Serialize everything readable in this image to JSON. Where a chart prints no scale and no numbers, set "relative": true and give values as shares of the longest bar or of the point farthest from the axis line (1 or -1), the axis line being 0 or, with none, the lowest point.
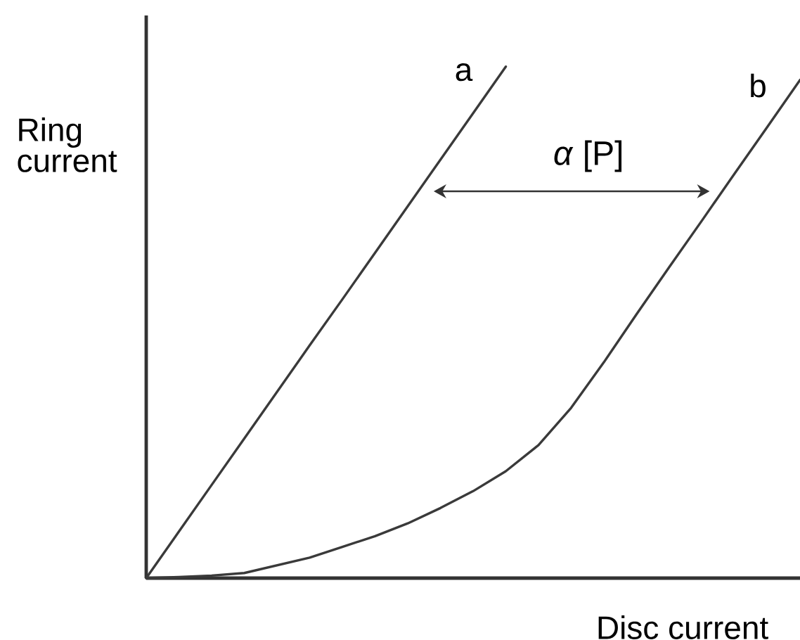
{
  "chart_data": {
    "type": "line",
    "relative": true,
    "xlabel": "Disc current",
    "ylabel": "Ring current",
    "categories": [
      null,
      null,
      null,
      null,
      null,
      null,
      null,
      null,
      null,
      null,
      null,
      null,
      null,
      null,
      null,
      null,
      null,
      null,
      null,
      null,
      null
    ],
    "series": [
      {
        "name": "a",
        "color": "#3a3a3a",
        "values": [
          0,
          0.091,
          0.182,
          0.273,
          0.364,
          0.455,
          0.545,
          0.636,
          0.727,
          0.818,
          0.909,
          1.0,
          null,
          null,
          null,
          null,
          null,
          null,
          null,
          null,
          null
        ]
      },
      {
        "name": "b",
        "color": "#3a3a3a",
        "values": [
          0,
          0.002,
          0.005,
          0.01,
          0.025,
          0.04,
          0.061,
          0.082,
          0.107,
          0.137,
          0.17,
          0.209,
          0.26,
          0.333,
          0.422,
          0.516,
          0.608,
          0.699,
          0.791,
          0.882,
          0.974
        ]
      }
    ],
    "annotations": [
      "*α* [P]"
    ]
  }
}
